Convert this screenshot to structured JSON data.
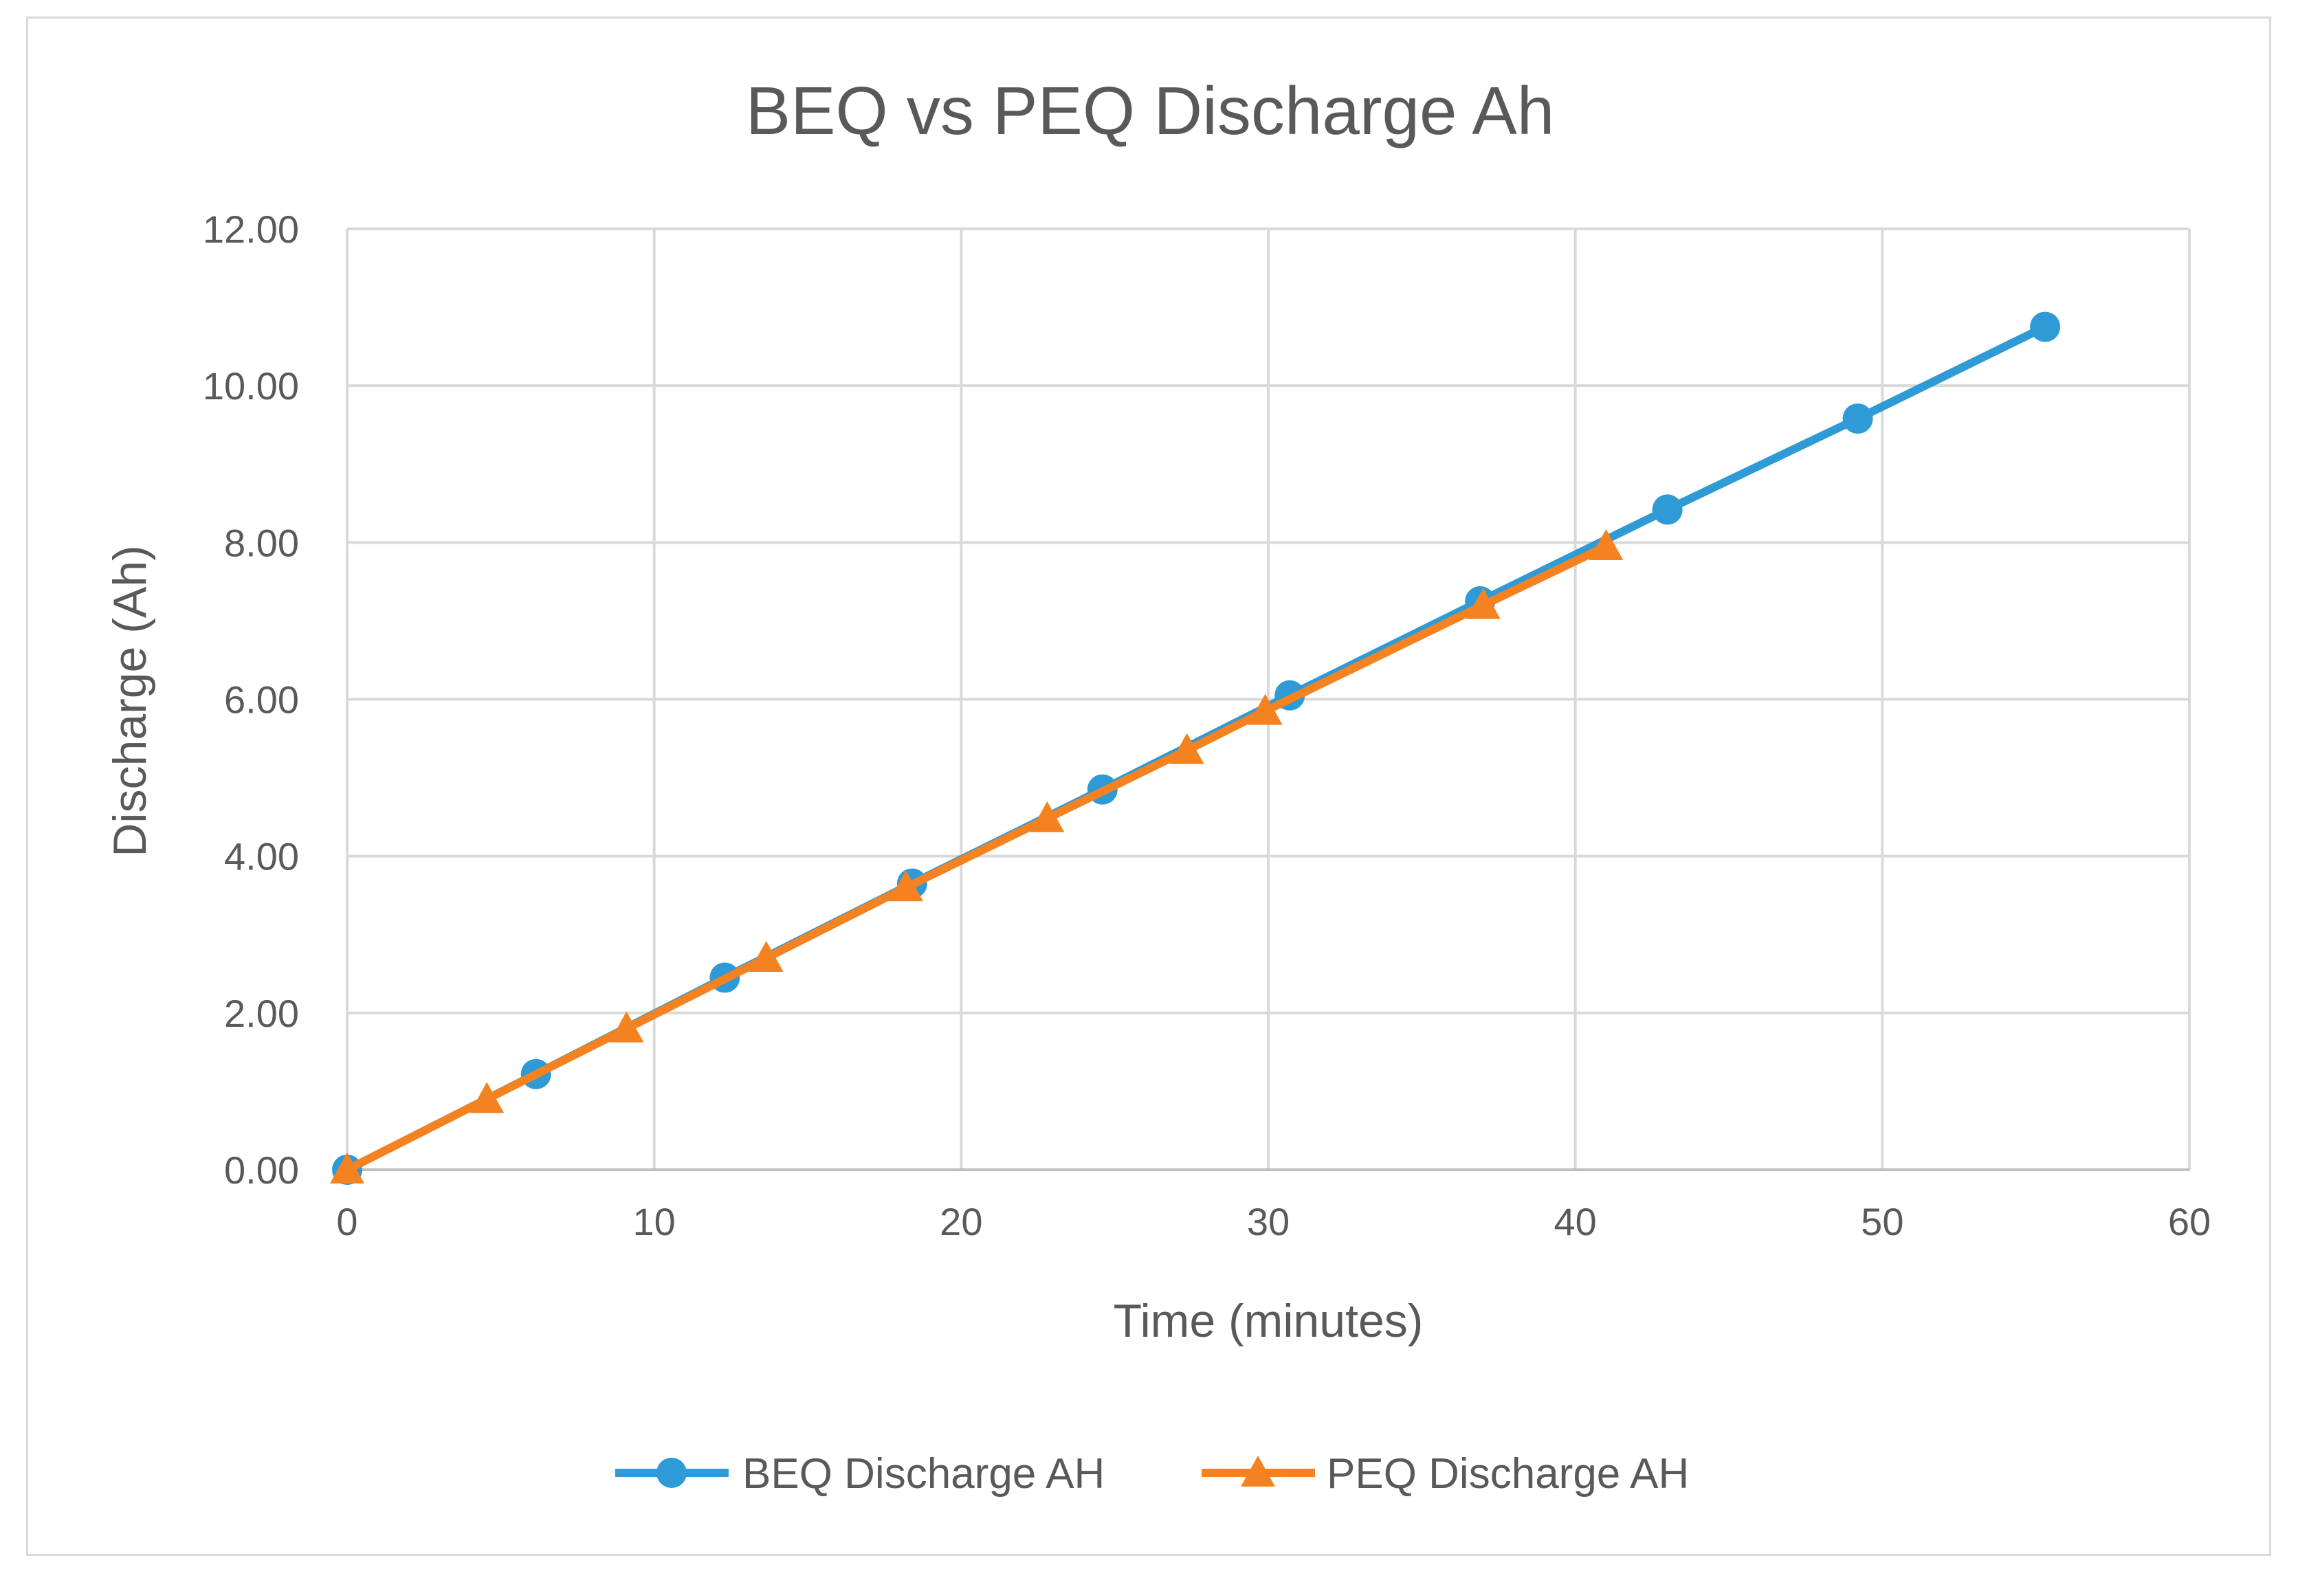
{
  "chart_data": {
    "type": "line",
    "title": "BEQ vs PEQ Discharge Ah",
    "xlabel": "Time (minutes)",
    "ylabel": "Discharge (Ah)",
    "xlim": [
      0,
      60
    ],
    "ylim": [
      0,
      12
    ],
    "x_ticks": [
      0,
      10,
      20,
      30,
      40,
      50,
      60
    ],
    "x_tick_labels": [
      "0",
      "10",
      "20",
      "30",
      "40",
      "50",
      "60"
    ],
    "y_ticks": [
      0,
      2,
      4,
      6,
      8,
      10,
      12
    ],
    "y_tick_labels": [
      "0.00",
      "2.00",
      "4.00",
      "6.00",
      "8.00",
      "10.00",
      "12.00"
    ],
    "grid": true,
    "legend_position": "bottom",
    "series": [
      {
        "name": "BEQ Discharge AH",
        "color": "#2e9ad6",
        "marker": "circle",
        "x": [
          0,
          6.15,
          12.3,
          18.4,
          24.6,
          30.7,
          36.9,
          43.0,
          49.2,
          55.3
        ],
        "y": [
          0.0,
          1.22,
          2.45,
          3.65,
          4.85,
          6.05,
          7.25,
          8.42,
          9.58,
          10.75
        ]
      },
      {
        "name": "PEQ Discharge AH",
        "color": "#f58220",
        "marker": "triangle",
        "x": [
          0,
          4.55,
          9.1,
          13.65,
          18.2,
          22.8,
          27.35,
          29.9,
          37.0,
          41.0
        ],
        "y": [
          0.0,
          0.9,
          1.8,
          2.7,
          3.6,
          4.48,
          5.35,
          5.85,
          7.2,
          7.95
        ]
      }
    ]
  }
}
